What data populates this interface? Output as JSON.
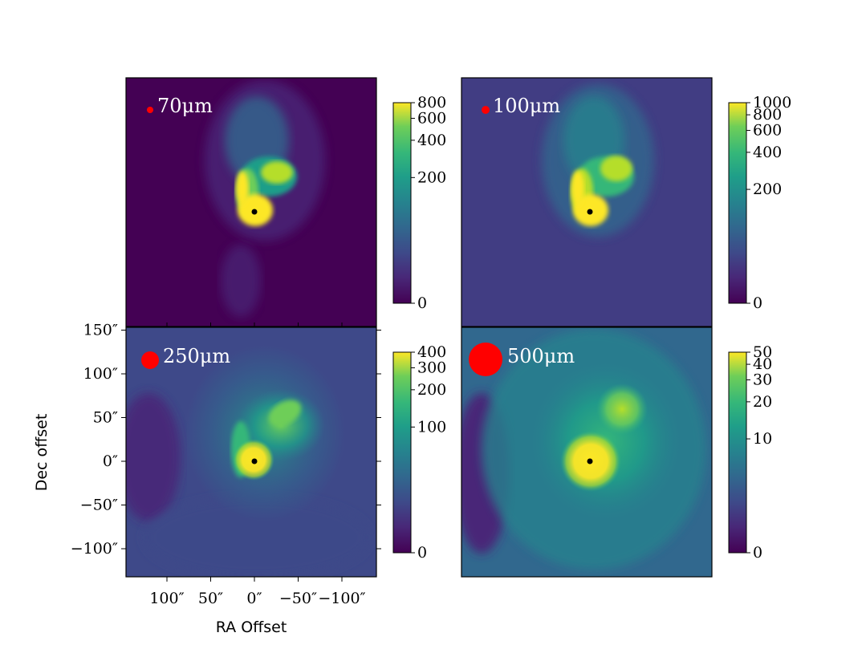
{
  "figure": {
    "xlabel": "RA Offset",
    "ylabel": "Dec offset"
  },
  "chart_data": [
    {
      "type": "heatmap",
      "panel": "70um",
      "label": "70μm",
      "colormap": "viridis",
      "colorbar_ticks": [
        "800",
        "600",
        "400",
        "200",
        "0"
      ],
      "colorbar_values": [
        800,
        600,
        400,
        200,
        0
      ],
      "beam_color": "#ff0000",
      "source_marker": "black dot at (0, 0)"
    },
    {
      "type": "heatmap",
      "panel": "100um",
      "label": "100μm",
      "colormap": "viridis",
      "colorbar_ticks": [
        "1000",
        "800",
        "600",
        "400",
        "200",
        "0"
      ],
      "colorbar_values": [
        1000,
        800,
        600,
        400,
        200,
        0
      ],
      "beam_color": "#ff0000",
      "source_marker": "black dot at (0, 0)"
    },
    {
      "type": "heatmap",
      "panel": "250um",
      "label": "250μm",
      "colormap": "viridis",
      "colorbar_ticks": [
        "400",
        "300",
        "200",
        "100",
        "0"
      ],
      "colorbar_values": [
        400,
        300,
        200,
        100,
        0
      ],
      "beam_color": "#ff0000",
      "source_marker": "black dot at (0, 0)",
      "x_ticks": [
        "100″",
        "50″",
        "0″",
        "−50″",
        "−100″"
      ],
      "x_tick_values": [
        100,
        50,
        0,
        -50,
        -100
      ],
      "y_ticks": [
        "150″",
        "100″",
        "50″",
        "0″",
        "−50″",
        "−100″"
      ],
      "y_tick_values": [
        150,
        100,
        50,
        0,
        -50,
        -100
      ]
    },
    {
      "type": "heatmap",
      "panel": "500um",
      "label": "500μm",
      "colormap": "viridis",
      "colorbar_ticks": [
        "50",
        "40",
        "30",
        "20",
        "10",
        "0"
      ],
      "colorbar_values": [
        50,
        40,
        30,
        20,
        10,
        0
      ],
      "beam_color": "#ff0000",
      "source_marker": "black dot at (0, 0)"
    }
  ]
}
